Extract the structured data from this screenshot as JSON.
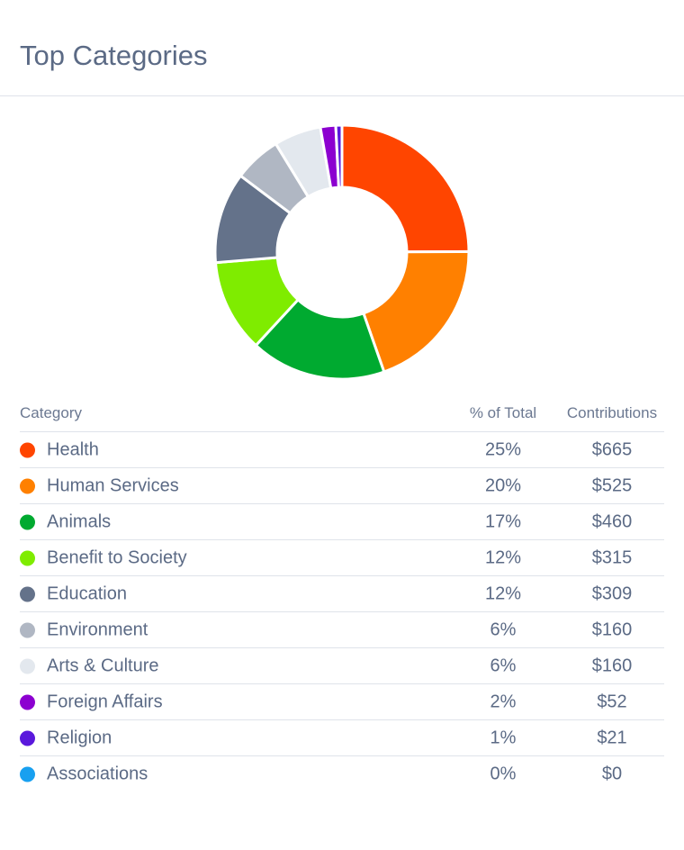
{
  "header": {
    "title": "Top Categories"
  },
  "table": {
    "col_category": "Category",
    "col_percent": "% of Total",
    "col_contrib": "Contributions"
  },
  "chart_data": {
    "type": "pie",
    "variant": "donut",
    "categories": [
      "Health",
      "Human Services",
      "Animals",
      "Benefit to Society",
      "Education",
      "Environment",
      "Arts & Culture",
      "Foreign Affairs",
      "Religion",
      "Associations"
    ],
    "values": [
      665,
      525,
      460,
      315,
      309,
      160,
      160,
      52,
      21,
      0
    ],
    "percent_labels": [
      "25%",
      "20%",
      "17%",
      "12%",
      "12%",
      "6%",
      "6%",
      "2%",
      "1%",
      "0%"
    ],
    "value_labels": [
      "$665",
      "$525",
      "$460",
      "$315",
      "$309",
      "$160",
      "$160",
      "$52",
      "$21",
      "$0"
    ],
    "colors": [
      "#FF4500",
      "#FF8000",
      "#00AA30",
      "#7FEC00",
      "#64728A",
      "#B0B7C3",
      "#E3E8EE",
      "#8C00D0",
      "#5A18DC",
      "#18A0F0"
    ]
  }
}
